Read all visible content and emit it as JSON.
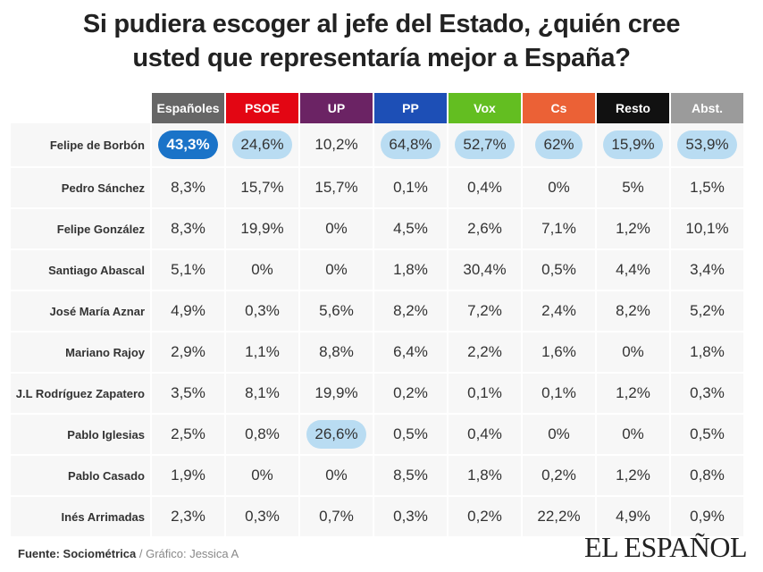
{
  "chart_data": {
    "type": "table",
    "title_line1": "Si pudiera escoger al jefe del Estado, ¿quién cree",
    "title_line2": "usted que representaría mejor a España?",
    "columns": [
      {
        "label": "Españoles",
        "color": "#666666"
      },
      {
        "label": "PSOE",
        "color": "#e30613"
      },
      {
        "label": "UP",
        "color": "#6b2364"
      },
      {
        "label": "PP",
        "color": "#1d4fb6"
      },
      {
        "label": "Vox",
        "color": "#63be21"
      },
      {
        "label": "Cs",
        "color": "#eb6136"
      },
      {
        "label": "Resto",
        "color": "#111111"
      },
      {
        "label": "Abst.",
        "color": "#9b9b9b"
      }
    ],
    "rows": [
      {
        "name": "Felipe de Borbón",
        "values": [
          "43,3%",
          "24,6%",
          "10,2%",
          "64,8%",
          "52,7%",
          "62%",
          "15,9%",
          "53,9%"
        ],
        "highlight": [
          2,
          1,
          0,
          1,
          1,
          1,
          1,
          1
        ]
      },
      {
        "name": "Pedro Sánchez",
        "values": [
          "8,3%",
          "15,7%",
          "15,7%",
          "0,1%",
          "0,4%",
          "0%",
          "5%",
          "1,5%"
        ],
        "highlight": [
          0,
          0,
          0,
          0,
          0,
          0,
          0,
          0
        ]
      },
      {
        "name": "Felipe González",
        "values": [
          "8,3%",
          "19,9%",
          "0%",
          "4,5%",
          "2,6%",
          "7,1%",
          "1,2%",
          "10,1%"
        ],
        "highlight": [
          0,
          0,
          0,
          0,
          0,
          0,
          0,
          0
        ]
      },
      {
        "name": "Santiago Abascal",
        "values": [
          "5,1%",
          "0%",
          "0%",
          "1,8%",
          "30,4%",
          "0,5%",
          "4,4%",
          "3,4%"
        ],
        "highlight": [
          0,
          0,
          0,
          0,
          0,
          0,
          0,
          0
        ]
      },
      {
        "name": "José María Aznar",
        "values": [
          "4,9%",
          "0,3%",
          "5,6%",
          "8,2%",
          "7,2%",
          "2,4%",
          "8,2%",
          "5,2%"
        ],
        "highlight": [
          0,
          0,
          0,
          0,
          0,
          0,
          0,
          0
        ]
      },
      {
        "name": "Mariano Rajoy",
        "values": [
          "2,9%",
          "1,1%",
          "8,8%",
          "6,4%",
          "2,2%",
          "1,6%",
          "0%",
          "1,8%"
        ],
        "highlight": [
          0,
          0,
          0,
          0,
          0,
          0,
          0,
          0
        ]
      },
      {
        "name": "J.L Rodríguez Zapatero",
        "values": [
          "3,5%",
          "8,1%",
          "19,9%",
          "0,2%",
          "0,1%",
          "0,1%",
          "1,2%",
          "0,3%"
        ],
        "highlight": [
          0,
          0,
          0,
          0,
          0,
          0,
          0,
          0
        ]
      },
      {
        "name": "Pablo Iglesias",
        "values": [
          "2,5%",
          "0,8%",
          "26,6%",
          "0,5%",
          "0,4%",
          "0%",
          "0%",
          "0,5%"
        ],
        "highlight": [
          0,
          0,
          1,
          0,
          0,
          0,
          0,
          0
        ]
      },
      {
        "name": "Pablo Casado",
        "values": [
          "1,9%",
          "0%",
          "0%",
          "8,5%",
          "1,8%",
          "0,2%",
          "1,2%",
          "0,8%"
        ],
        "highlight": [
          0,
          0,
          0,
          0,
          0,
          0,
          0,
          0
        ]
      },
      {
        "name": "Inés Arrimadas",
        "values": [
          "2,3%",
          "0,3%",
          "0,7%",
          "0,3%",
          "0,2%",
          "22,2%",
          "4,9%",
          "0,9%"
        ],
        "highlight": [
          0,
          0,
          0,
          0,
          0,
          0,
          0,
          0
        ]
      }
    ]
  },
  "footer": {
    "source_label": "Fuente: Sociométrica",
    "separator": "/",
    "credit": "Gráfico: Jessica A",
    "logo": "EL ESPAÑOL"
  }
}
